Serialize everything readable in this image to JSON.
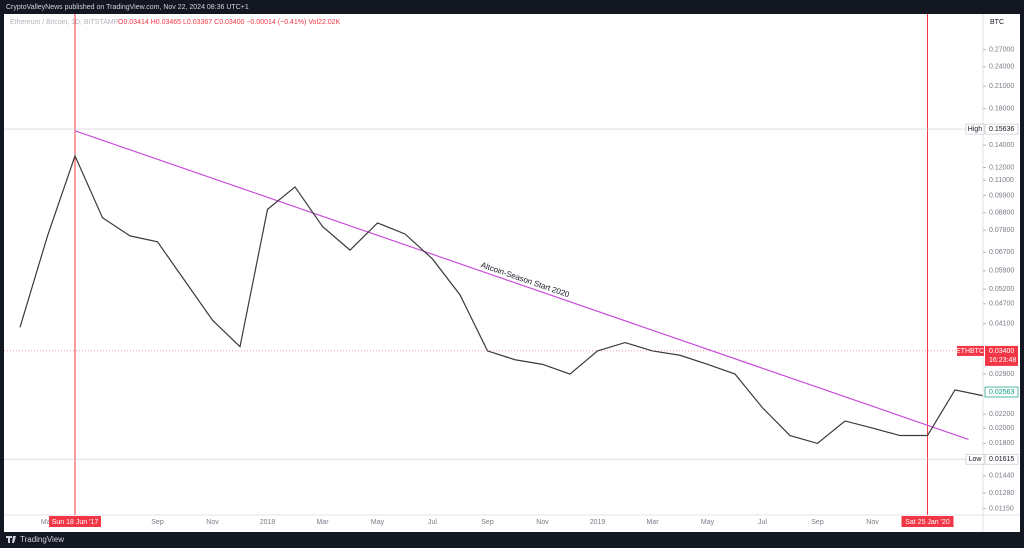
{
  "header": {
    "publisher": "CryptoValleyNews published on TradingView.com, Nov 22, 2024 08:36 UTC+1"
  },
  "footer": {
    "brand": "TradingView"
  },
  "chart_data": {
    "type": "line",
    "symbol": "Ethereum / Bitcoin, 1D, BITSTAMP",
    "ohlc": "O0.03414 H0.03465 L0.03367 C0.03400 −0.00014 (−0.41%) Vol22.02K",
    "y_unit": "BTC",
    "log_scale": true,
    "categories": [
      null,
      "May",
      "Sun 18 Jun '17",
      null,
      null,
      "Sep",
      null,
      "Nov",
      null,
      "2018",
      null,
      "Mar",
      null,
      "May",
      null,
      "Jul",
      null,
      "Sep",
      null,
      "Nov",
      null,
      "2019",
      null,
      "Mar",
      null,
      "May",
      null,
      "Jul",
      null,
      "Sep",
      null,
      "Nov",
      null,
      "Sat 25 Jan '20",
      null,
      null
    ],
    "series": [
      {
        "color": "#3a3a3a",
        "values": [
          0.04,
          0.075,
          0.13,
          0.085,
          0.075,
          0.072,
          0.055,
          0.042,
          0.035,
          0.09,
          0.105,
          0.08,
          0.068,
          0.082,
          0.076,
          0.064,
          0.05,
          0.034,
          0.032,
          0.031,
          0.029,
          0.034,
          0.036,
          0.034,
          0.033,
          0.031,
          0.029,
          0.023,
          0.019,
          0.018,
          0.021,
          0.02,
          0.019,
          0.019,
          0.026,
          0.025
        ]
      }
    ],
    "marked_categories": [
      "Sun 18 Jun '17",
      "Sat 25 Jan '20"
    ],
    "marker_color": "#f23645",
    "trendline": {
      "label": "Altcoin-Season Start 2020",
      "color": "#c94fd8",
      "values": [
        0.1545,
        0.0185
      ]
    },
    "high": {
      "label": "High",
      "value": 0.15636,
      "value_label": "0.15636"
    },
    "low": {
      "label": "Low",
      "value": 0.01615,
      "value_label": "0.01615"
    },
    "last": {
      "label": "ETHBTC",
      "value": 0.034,
      "value_label": "0.03400",
      "countdown": "16:23:48"
    },
    "ma": {
      "value": 0.02563,
      "value_label": "0.02563"
    },
    "ylim": [
      0.011,
      0.345
    ],
    "yticks": [
      {
        "value": 0.27,
        "label": "0.27000"
      },
      {
        "value": 0.24,
        "label": "0.24000"
      },
      {
        "value": 0.21,
        "label": "0.21000"
      },
      {
        "value": 0.18,
        "label": "0.18000"
      },
      {
        "value": 0.14,
        "label": "0.14000"
      },
      {
        "value": 0.12,
        "label": "0.12000"
      },
      {
        "value": 0.11,
        "label": "0.11000"
      },
      {
        "value": 0.099,
        "label": "0.09900"
      },
      {
        "value": 0.088,
        "label": "0.08800"
      },
      {
        "value": 0.078,
        "label": "0.07800"
      },
      {
        "value": 0.067,
        "label": "0.06700"
      },
      {
        "value": 0.059,
        "label": "0.05900"
      },
      {
        "value": 0.052,
        "label": "0.05200"
      },
      {
        "value": 0.047,
        "label": "0.04700"
      },
      {
        "value": 0.041,
        "label": "0.04100"
      },
      {
        "value": 0.029,
        "label": "0.02900"
      },
      {
        "value": 0.022,
        "label": "0.02200"
      },
      {
        "value": 0.02,
        "label": "0.02000"
      },
      {
        "value": 0.018,
        "label": "0.01800"
      },
      {
        "value": 0.0144,
        "label": "0.01440"
      },
      {
        "value": 0.0128,
        "label": "0.01280"
      },
      {
        "value": 0.0115,
        "label": "0.01150"
      }
    ]
  }
}
